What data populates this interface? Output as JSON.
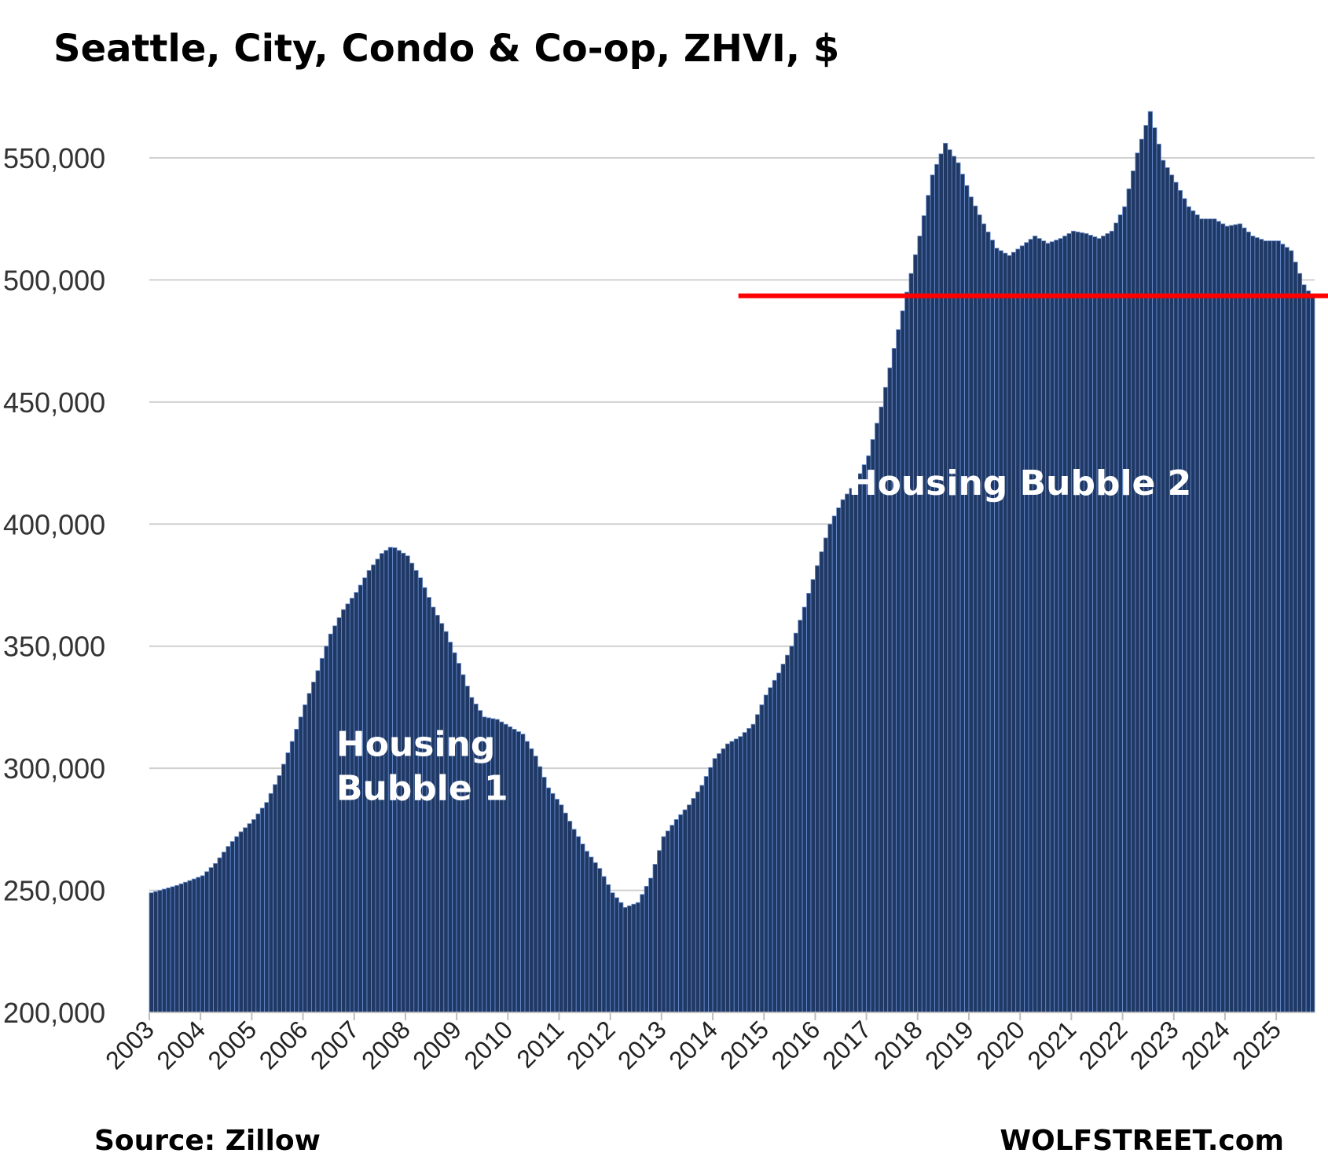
{
  "chart_data": {
    "type": "bar",
    "title": "Seattle, City, Condo & Co-op, ZHVI, $",
    "source": "Source: Zillow",
    "brand": "WOLFSTREET.com",
    "xlabel": "",
    "ylabel": "",
    "ylim": [
      200000,
      570000
    ],
    "yticks": [
      200000,
      250000,
      300000,
      350000,
      400000,
      450000,
      500000,
      550000
    ],
    "ytick_labels": [
      "200,000",
      "250,000",
      "300,000",
      "350,000",
      "400,000",
      "450,000",
      "500,000",
      "550,000"
    ],
    "x_tick_labels": [
      "2003",
      "2004",
      "2005",
      "2006",
      "2007",
      "2008",
      "2009",
      "2010",
      "2011",
      "2012",
      "2013",
      "2014",
      "2015",
      "2016",
      "2017",
      "2018",
      "2019",
      "2020",
      "2021",
      "2022",
      "2023",
      "2024",
      "2025"
    ],
    "frequency": "monthly, Jan 2003 – Sep 2025",
    "grid": true,
    "bar_color": "#1f3864",
    "reference_line": {
      "value": 493500,
      "color": "#ff0000"
    },
    "annotations": [
      {
        "lines": [
          "Housing",
          "Bubble 1"
        ],
        "year": 2006.65,
        "value": 305000
      },
      {
        "lines": [
          "Housing Bubble 2"
        ],
        "year": 2016.65,
        "value": 412000
      }
    ],
    "series": [
      {
        "anchor_values": [
          [
            2003.0,
            249000
          ],
          [
            2003.5,
            252000
          ],
          [
            2004.0,
            256000
          ],
          [
            2004.25,
            261000
          ],
          [
            2004.5,
            268000
          ],
          [
            2004.75,
            274000
          ],
          [
            2005.0,
            279000
          ],
          [
            2005.25,
            286000
          ],
          [
            2005.5,
            297000
          ],
          [
            2005.75,
            311000
          ],
          [
            2006.0,
            326000
          ],
          [
            2006.25,
            340000
          ],
          [
            2006.5,
            355000
          ],
          [
            2006.75,
            365000
          ],
          [
            2007.0,
            372000
          ],
          [
            2007.25,
            381000
          ],
          [
            2007.5,
            388000
          ],
          [
            2007.7,
            391000
          ],
          [
            2008.0,
            387000
          ],
          [
            2008.25,
            378000
          ],
          [
            2008.5,
            366000
          ],
          [
            2008.75,
            356000
          ],
          [
            2009.0,
            343000
          ],
          [
            2009.25,
            329000
          ],
          [
            2009.5,
            321000
          ],
          [
            2009.75,
            320000
          ],
          [
            2010.0,
            317000
          ],
          [
            2010.25,
            314000
          ],
          [
            2010.5,
            305000
          ],
          [
            2010.75,
            292000
          ],
          [
            2011.0,
            285000
          ],
          [
            2011.25,
            275000
          ],
          [
            2011.5,
            266000
          ],
          [
            2011.75,
            259000
          ],
          [
            2012.0,
            249000
          ],
          [
            2012.25,
            243000
          ],
          [
            2012.5,
            245000
          ],
          [
            2012.75,
            255000
          ],
          [
            2013.0,
            272000
          ],
          [
            2013.25,
            279000
          ],
          [
            2013.5,
            285000
          ],
          [
            2013.75,
            293000
          ],
          [
            2014.0,
            304000
          ],
          [
            2014.25,
            310000
          ],
          [
            2014.5,
            313000
          ],
          [
            2014.75,
            318000
          ],
          [
            2015.0,
            330000
          ],
          [
            2015.25,
            339000
          ],
          [
            2015.5,
            350000
          ],
          [
            2015.75,
            366000
          ],
          [
            2016.0,
            383000
          ],
          [
            2016.25,
            400000
          ],
          [
            2016.5,
            410000
          ],
          [
            2016.75,
            417000
          ],
          [
            2017.0,
            428000
          ],
          [
            2017.25,
            448000
          ],
          [
            2017.5,
            472000
          ],
          [
            2017.75,
            495000
          ],
          [
            2018.0,
            518000
          ],
          [
            2018.25,
            543000
          ],
          [
            2018.5,
            556000
          ],
          [
            2018.75,
            548000
          ],
          [
            2019.0,
            534000
          ],
          [
            2019.25,
            523000
          ],
          [
            2019.5,
            513000
          ],
          [
            2019.75,
            510000
          ],
          [
            2020.0,
            514000
          ],
          [
            2020.25,
            518000
          ],
          [
            2020.5,
            515000
          ],
          [
            2020.75,
            517000
          ],
          [
            2021.0,
            520000
          ],
          [
            2021.25,
            519000
          ],
          [
            2021.5,
            517000
          ],
          [
            2021.75,
            520000
          ],
          [
            2022.0,
            530000
          ],
          [
            2022.25,
            552000
          ],
          [
            2022.5,
            569000
          ],
          [
            2022.75,
            549000
          ],
          [
            2023.0,
            540000
          ],
          [
            2023.25,
            530000
          ],
          [
            2023.5,
            525000
          ],
          [
            2023.75,
            525000
          ],
          [
            2024.0,
            522000
          ],
          [
            2024.25,
            523000
          ],
          [
            2024.5,
            518000
          ],
          [
            2024.75,
            516000
          ],
          [
            2025.0,
            516000
          ],
          [
            2025.25,
            512000
          ],
          [
            2025.5,
            498000
          ],
          [
            2025.67,
            493000
          ]
        ]
      }
    ]
  }
}
